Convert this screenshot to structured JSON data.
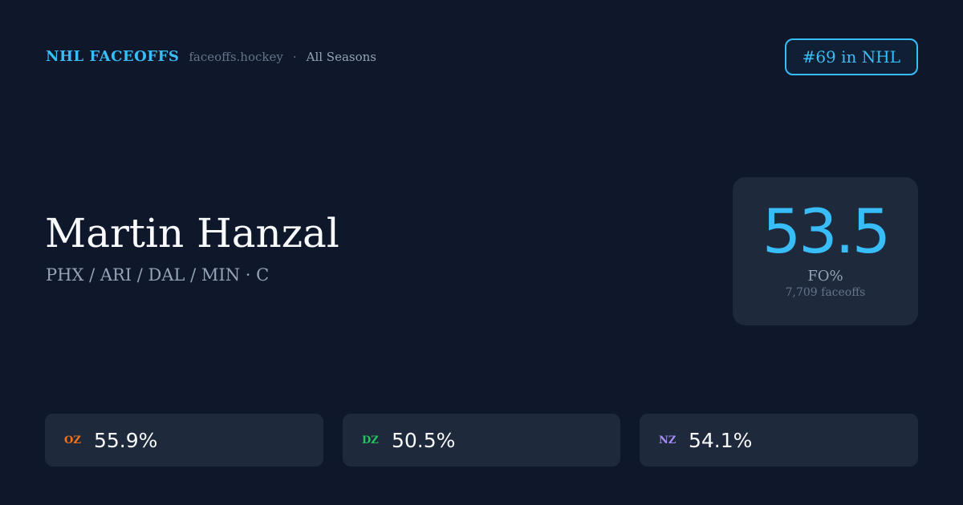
{
  "header": {
    "brand": "NHL FACEOFFS",
    "site": "faceoffs.hockey",
    "separator": "·",
    "season": "All Seasons",
    "rank": "#69 in NHL"
  },
  "player": {
    "name": "Martin Hanzal",
    "teams_position": "PHX / ARI / DAL / MIN · C"
  },
  "stat": {
    "value": "53.5",
    "label": "FO%",
    "faceoffs": "7,709 faceoffs"
  },
  "zones": [
    {
      "label": "OZ",
      "value": "55.9%",
      "color": "#f97316"
    },
    {
      "label": "DZ",
      "value": "50.5%",
      "color": "#22c55e"
    },
    {
      "label": "NZ",
      "value": "54.1%",
      "color": "#a78bfa"
    }
  ]
}
